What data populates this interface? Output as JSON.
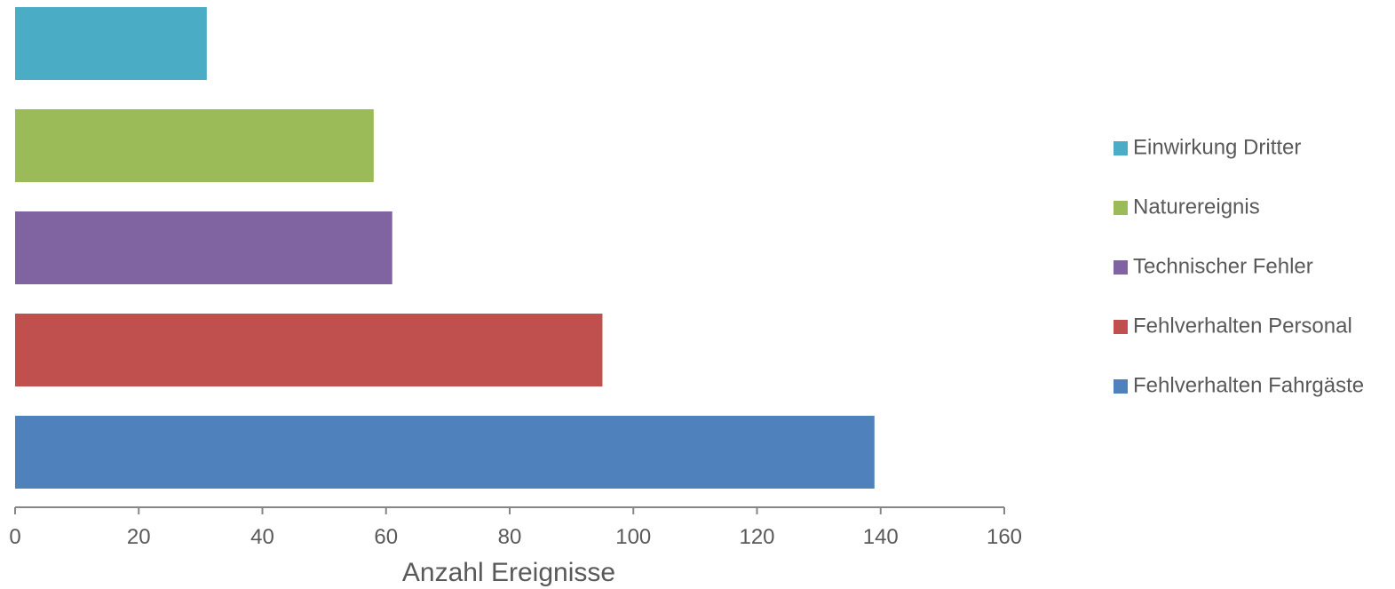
{
  "chart_data": {
    "type": "bar",
    "orientation": "horizontal",
    "xlabel": "Anzahl Ereignisse",
    "ylabel": "",
    "xlim": [
      0,
      160
    ],
    "xticks": [
      "0",
      "20",
      "40",
      "60",
      "80",
      "100",
      "120",
      "140",
      "160"
    ],
    "grid": false,
    "legend_position": "right",
    "series": [
      {
        "name": "Einwirkung Dritter",
        "value": 31,
        "color": "#4bacc6"
      },
      {
        "name": "Naturereignis",
        "value": 58,
        "color": "#9bbb59"
      },
      {
        "name": "Technischer Fehler",
        "value": 61,
        "color": "#8064a2"
      },
      {
        "name": "Fehlverhalten Personal",
        "value": 95,
        "color": "#c0504d"
      },
      {
        "name": "Fehlverhalten Fahrgäste",
        "value": 139,
        "color": "#4f81bd"
      }
    ]
  }
}
